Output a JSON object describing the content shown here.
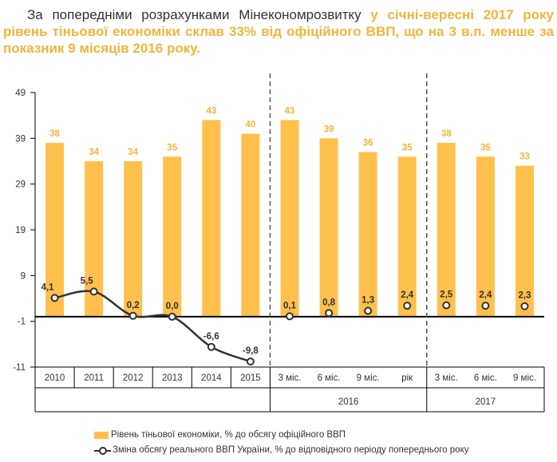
{
  "headline": {
    "plain": "За попередніми розрахунками Мінекономрозвитку",
    "accent": "у січні-вересні 2017 року рівень тіньової економіки склав 33% від офіційного ВВП, що на 3 в.п. менше за показник 9 місяців 2016 року."
  },
  "colors": {
    "bar": "#FFC04D",
    "bar_label": "#F2B43C",
    "line": "#333333",
    "text": "#333333",
    "axis": "#000000",
    "divider": "#555555"
  },
  "chart_data": {
    "type": "bar",
    "categories": [
      "2010",
      "2011",
      "2012",
      "2013",
      "2014",
      "2015",
      "3 міс.",
      "6 міс.",
      "9 міс.",
      "рік",
      "3 міс.",
      "6 міс.",
      "9 міс."
    ],
    "groups": [
      {
        "label": "2016",
        "from": 6,
        "to": 9
      },
      {
        "label": "2017",
        "from": 10,
        "to": 12
      }
    ],
    "series": [
      {
        "name": "Рівень тіньової економіки, % до обсягу офіційного ВВП",
        "kind": "bar",
        "values": [
          38,
          34,
          34,
          35,
          43,
          40,
          43,
          39,
          36,
          35,
          38,
          35,
          33
        ],
        "labels": [
          "38",
          "34",
          "34",
          "35",
          "43",
          "40",
          "43",
          "39",
          "36",
          "35",
          "38",
          "35",
          "33"
        ]
      },
      {
        "name": "Зміна обсягу реального ВВП України, % до відповідного періоду попереднього року",
        "kind": "line",
        "values": [
          4.1,
          5.5,
          0.2,
          0.0,
          -6.6,
          -9.8,
          0.1,
          0.8,
          1.3,
          2.4,
          2.5,
          2.4,
          2.3
        ],
        "labels": [
          "4,1",
          "5,5",
          "0,2",
          "0,0",
          "-6,6",
          "-9,8",
          "0,1",
          "0,8",
          "1,3",
          "2,4",
          "2,5",
          "2,4",
          "2,3"
        ],
        "connected_until": 5
      }
    ],
    "y_ticks": [
      49,
      39,
      29,
      19,
      9,
      -1,
      -11
    ],
    "ylim": [
      -11,
      49
    ],
    "grid": false,
    "legend_position": "bottom"
  }
}
